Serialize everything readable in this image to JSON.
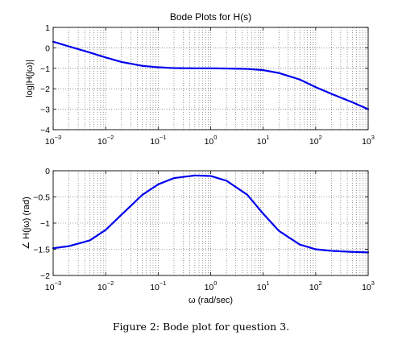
{
  "caption": "Figure 2: Bode plot for question 3.",
  "chart_data": [
    {
      "type": "line",
      "title": "Bode Plots for H(s)",
      "xlabel": "",
      "ylabel": "log|H(jω)|",
      "xscale": "log",
      "xlim": [
        0.001,
        1000
      ],
      "ylim": [
        -4,
        1
      ],
      "xticks": [
        {
          "base": "10",
          "exp": "−3"
        },
        {
          "base": "10",
          "exp": "−2"
        },
        {
          "base": "10",
          "exp": "−1"
        },
        {
          "base": "10",
          "exp": "0"
        },
        {
          "base": "10",
          "exp": "1"
        },
        {
          "base": "10",
          "exp": "2"
        },
        {
          "base": "10",
          "exp": "3"
        }
      ],
      "yticks": [
        "1",
        "0",
        "−1",
        "−2",
        "−3",
        "−4"
      ],
      "grid": true,
      "color": "#0000ee",
      "x": [
        0.001,
        0.002,
        0.005,
        0.01,
        0.02,
        0.05,
        0.1,
        0.2,
        0.5,
        1,
        2,
        5,
        10,
        20,
        50,
        100,
        200,
        500,
        1000
      ],
      "y": [
        0.3,
        0.07,
        -0.23,
        -0.47,
        -0.69,
        -0.88,
        -0.95,
        -0.99,
        -1.0,
        -1.0,
        -1.01,
        -1.03,
        -1.09,
        -1.23,
        -1.55,
        -1.92,
        -2.25,
        -2.66,
        -3.0
      ]
    },
    {
      "type": "line",
      "title": "",
      "xlabel": "ω (rad/sec)",
      "ylabel": "∠ H(jω) (rad)",
      "xscale": "log",
      "xlim": [
        0.001,
        1000
      ],
      "ylim": [
        -2,
        0
      ],
      "xticks": [
        {
          "base": "10",
          "exp": "−3"
        },
        {
          "base": "10",
          "exp": "−2"
        },
        {
          "base": "10",
          "exp": "−1"
        },
        {
          "base": "10",
          "exp": "0"
        },
        {
          "base": "10",
          "exp": "1"
        },
        {
          "base": "10",
          "exp": "2"
        },
        {
          "base": "10",
          "exp": "3"
        }
      ],
      "yticks": [
        "0",
        "−0.5",
        "−1",
        "−1.5",
        "−2"
      ],
      "grid": true,
      "color": "#0000ee",
      "x": [
        0.001,
        0.002,
        0.005,
        0.01,
        0.02,
        0.05,
        0.1,
        0.2,
        0.5,
        1,
        2,
        5,
        10,
        20,
        50,
        100,
        200,
        500,
        1000
      ],
      "y": [
        -1.48,
        -1.44,
        -1.33,
        -1.13,
        -0.84,
        -0.46,
        -0.26,
        -0.14,
        -0.09,
        -0.1,
        -0.19,
        -0.46,
        -0.82,
        -1.15,
        -1.41,
        -1.5,
        -1.53,
        -1.55,
        -1.56
      ]
    }
  ]
}
